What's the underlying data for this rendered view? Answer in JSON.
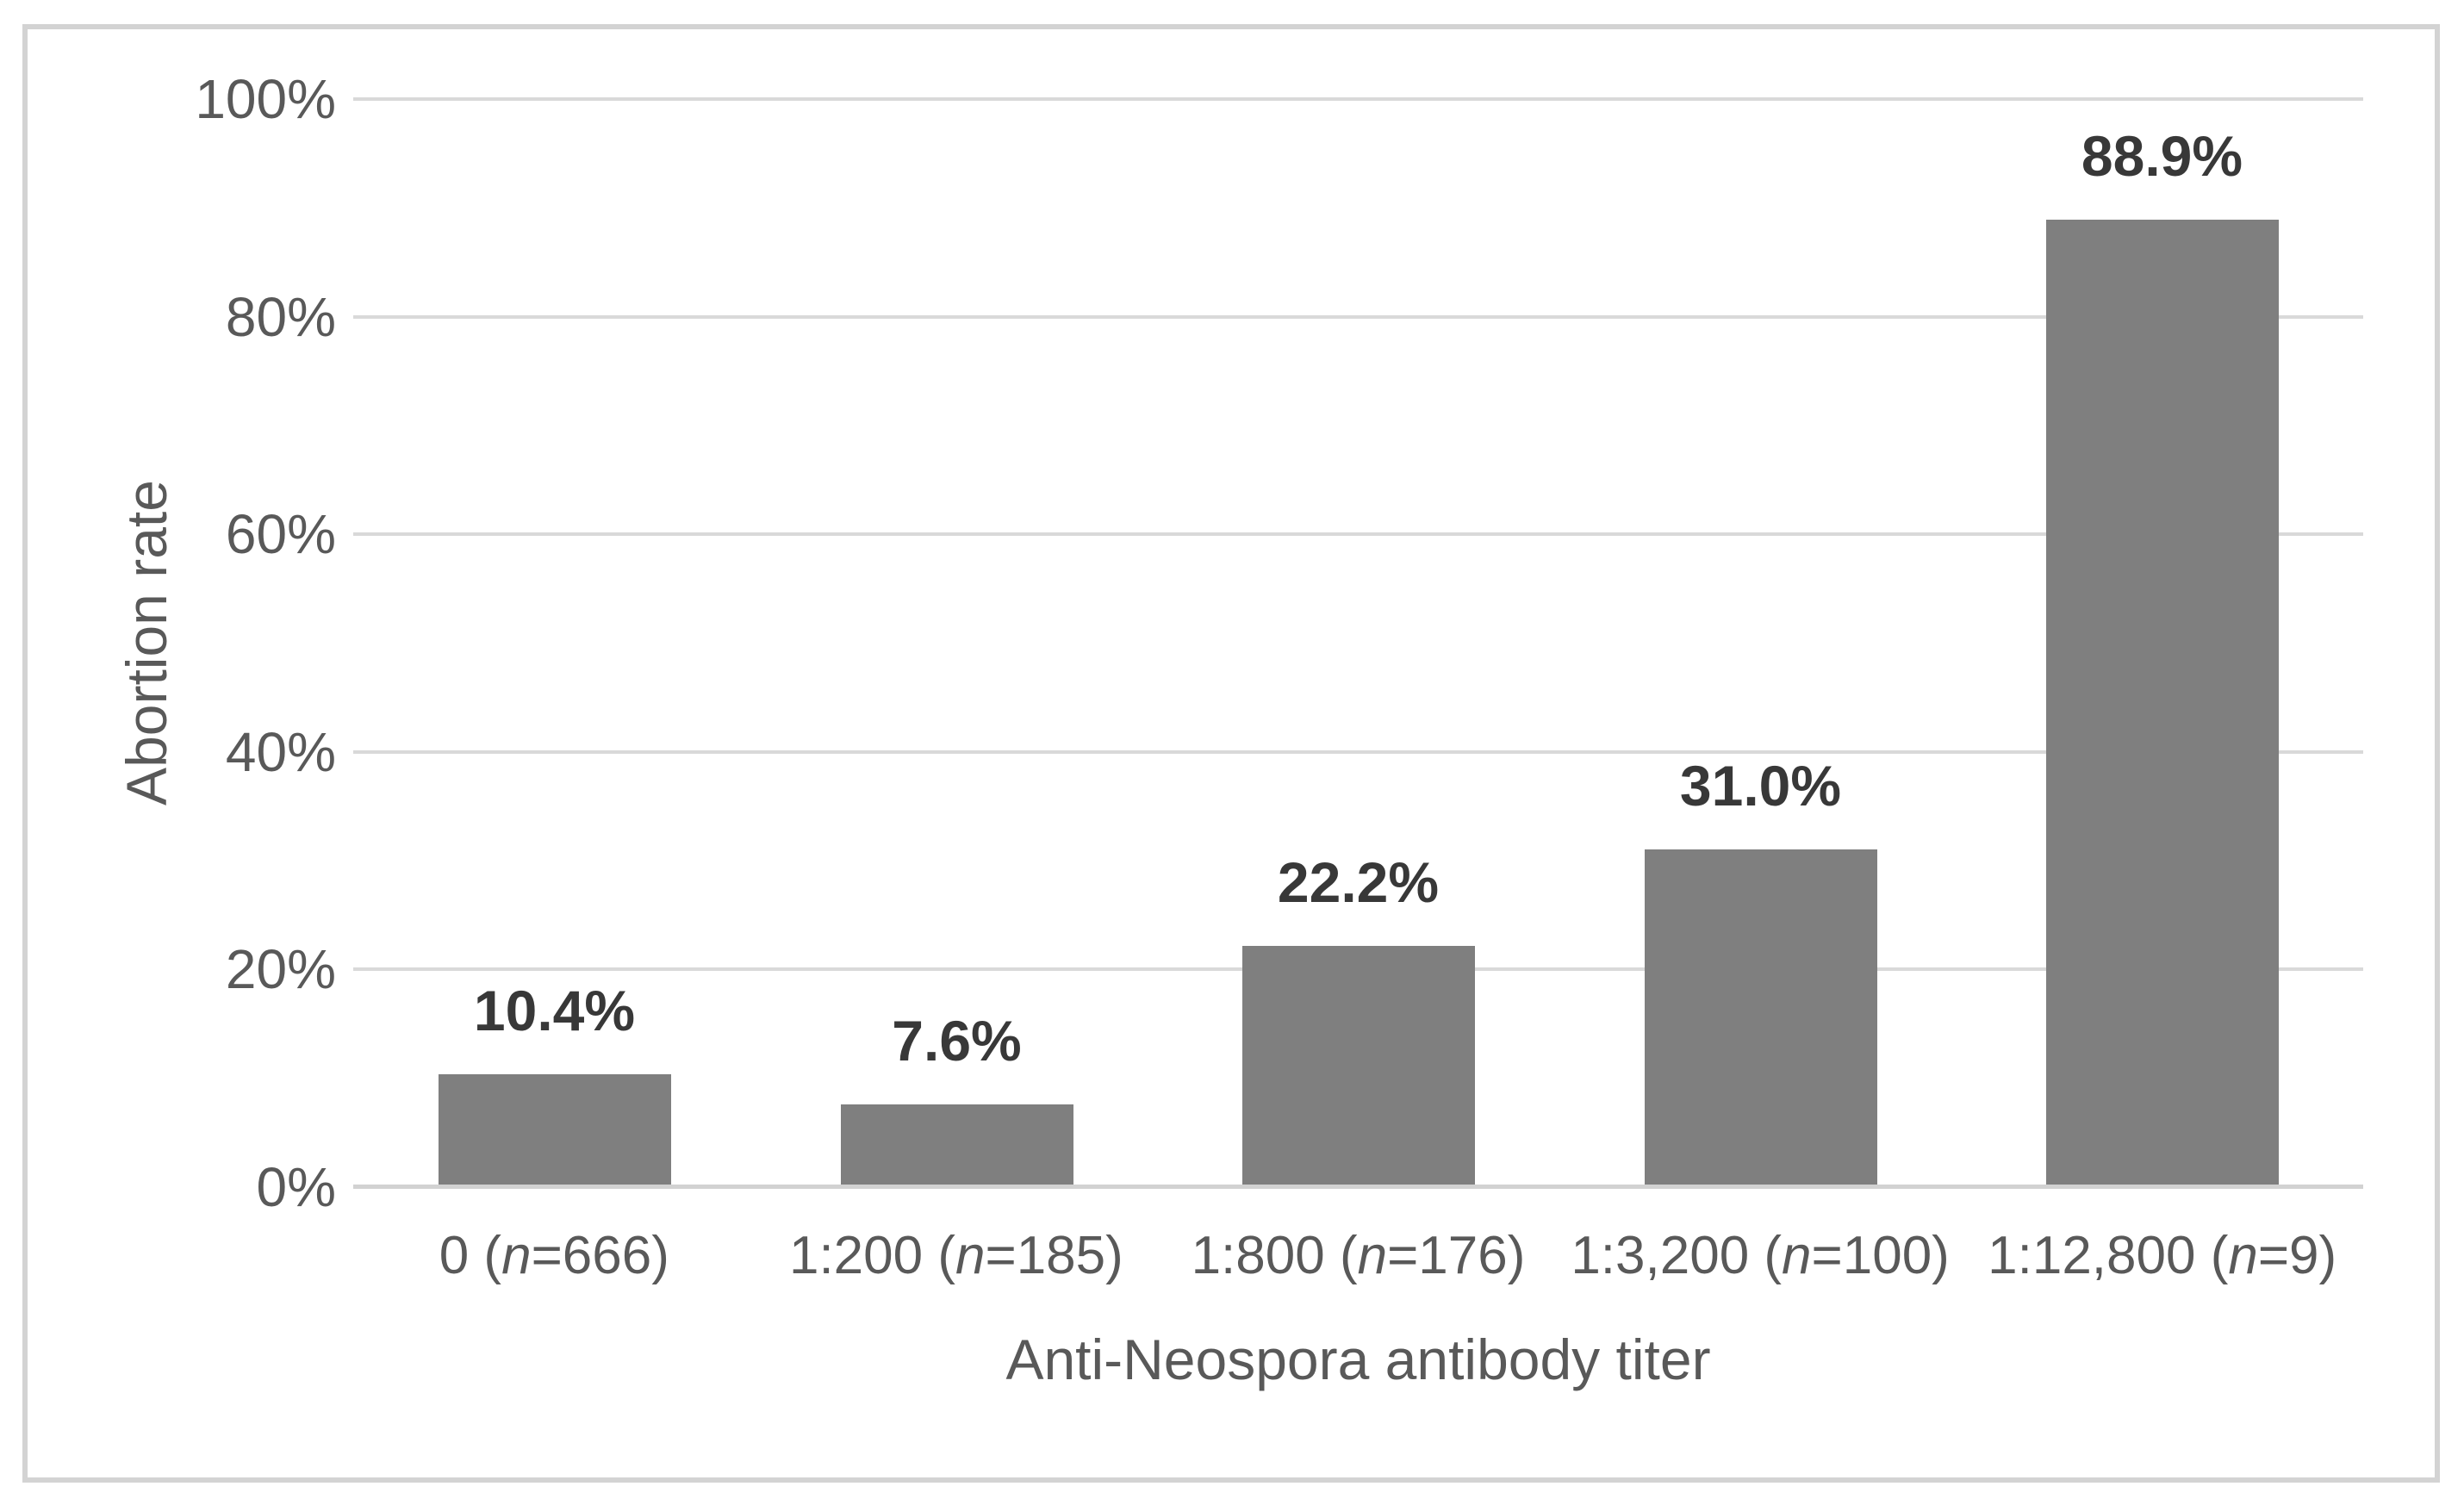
{
  "figure": {
    "background": "#ffffff",
    "border_color": "#d3d3d3"
  },
  "chart_data": {
    "type": "bar",
    "title": "",
    "xlabel": "Anti-Neospora antibody titer",
    "ylabel": "Abortion rate",
    "categories": [
      "0 (n=666)",
      "1:200 (n=185)",
      "1:800 (n=176)",
      "1:3,200 (n=100)",
      "1:12,800 (n=9)"
    ],
    "categories_styled": [
      {
        "pre": "0 (",
        "it": "n",
        "post": "=666)"
      },
      {
        "pre": "1:200 (",
        "it": "n",
        "post": "=185)"
      },
      {
        "pre": "1:800 (",
        "it": "n",
        "post": "=176)"
      },
      {
        "pre": "1:3,200 (",
        "it": "n",
        "post": "=100)"
      },
      {
        "pre": "1:12,800 (",
        "it": "n",
        "post": "=9)"
      }
    ],
    "values": [
      10.4,
      7.6,
      22.2,
      31.0,
      88.9
    ],
    "value_labels": [
      "10.4%",
      "7.6%",
      "22.2%",
      "31.0%",
      "88.9%"
    ],
    "yticks": [
      "100%",
      "80%",
      "60%",
      "40%",
      "20%",
      "0%"
    ],
    "ylim": [
      0,
      100
    ],
    "ytick_step": 20,
    "grid": true,
    "legend": false,
    "bar_color": "#7f7f7f",
    "gridline_color": "#d9d9d9",
    "axis_text_color": "#595959",
    "value_label_color": "#383838"
  }
}
